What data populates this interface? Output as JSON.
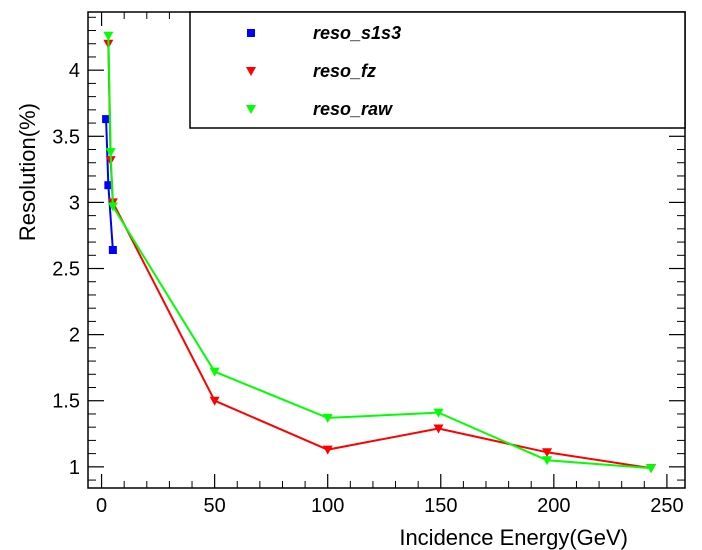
{
  "chart_data": {
    "type": "line",
    "title": "",
    "xlabel": "Incidence  Energy(GeV)",
    "ylabel": "Resolution(%)",
    "xlim": [
      -6,
      258
    ],
    "ylim": [
      0.84,
      4.44
    ],
    "x_ticks": [
      0,
      50,
      100,
      150,
      200,
      250
    ],
    "x_tick_labels": [
      "0",
      "50",
      "100",
      "150",
      "200",
      "250"
    ],
    "y_ticks": [
      1,
      1.5,
      2,
      2.5,
      3,
      3.5,
      4
    ],
    "y_tick_labels": [
      "1",
      "1.5",
      "2",
      "2.5",
      "3",
      "3.5",
      "4"
    ],
    "grid": false,
    "legend_position": "top-right",
    "series": [
      {
        "name": "reso_s1s3",
        "color": "#0000ff",
        "marker": "square",
        "x": [
          2,
          3,
          5
        ],
        "y": [
          3.63,
          3.13,
          2.64
        ]
      },
      {
        "name": "reso_fz",
        "color": "#ff0000",
        "marker": "triangle-down",
        "x": [
          3,
          4,
          5,
          50,
          100,
          149,
          197,
          243
        ],
        "y": [
          4.2,
          3.32,
          3.0,
          1.5,
          1.13,
          1.29,
          1.11,
          0.99
        ]
      },
      {
        "name": "reso_raw",
        "color": "#00ff00",
        "marker": "triangle-down",
        "x": [
          3,
          4,
          5,
          50,
          100,
          149,
          197,
          243
        ],
        "y": [
          4.26,
          3.38,
          2.97,
          1.72,
          1.37,
          1.41,
          1.05,
          0.99
        ]
      }
    ]
  }
}
